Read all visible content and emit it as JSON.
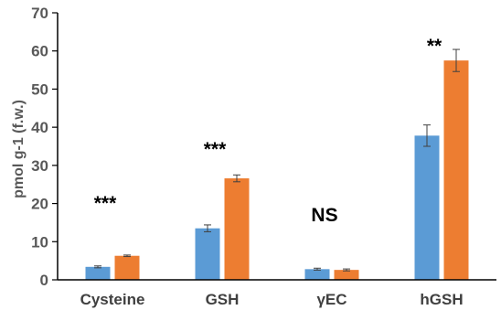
{
  "chart_data": {
    "type": "bar",
    "title": "",
    "xlabel": "",
    "ylabel": "pmol g-1 (f.w.)",
    "ylim": [
      0,
      70
    ],
    "yticks": [
      0,
      10,
      20,
      30,
      40,
      50,
      60,
      70
    ],
    "grid": false,
    "legend": "none",
    "categories": [
      "Cysteine",
      "GSH",
      "γEC",
      "hGSH"
    ],
    "series": [
      {
        "color": "#5b9bd5",
        "values": [
          3.4,
          13.5,
          2.8,
          37.8
        ],
        "errors": [
          0.25,
          0.9,
          0.25,
          2.8
        ]
      },
      {
        "color": "#ed7d31",
        "values": [
          6.3,
          26.6,
          2.6,
          57.5
        ],
        "errors": [
          0.2,
          0.9,
          0.25,
          2.9
        ]
      }
    ],
    "annotations": [
      "***",
      "***",
      "NS",
      "**"
    ]
  }
}
